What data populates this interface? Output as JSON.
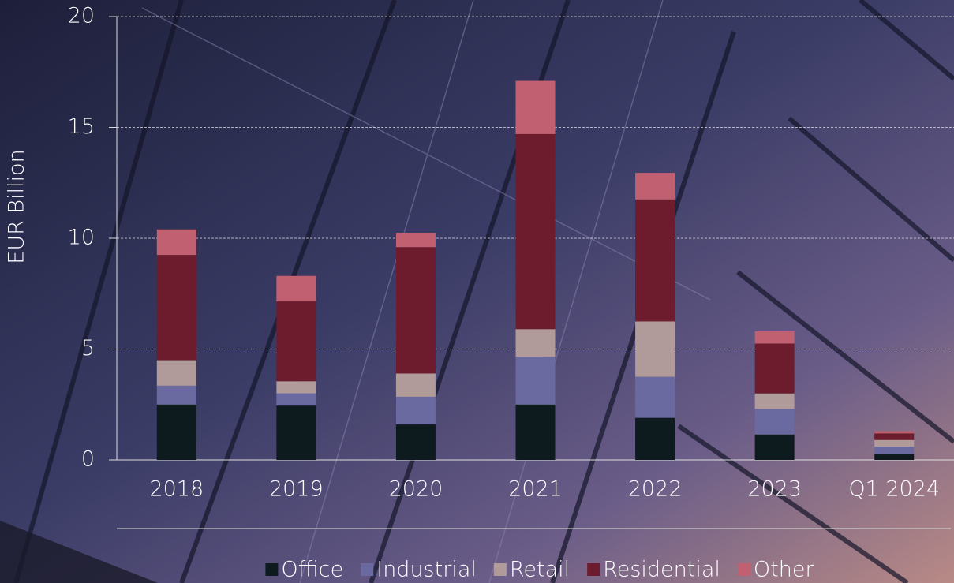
{
  "chart_data": {
    "type": "stacked_bar",
    "y_label": "EUR Billion",
    "categories": [
      "2018",
      "2019",
      "2020",
      "2021",
      "2022",
      "2023",
      "Q1 2024"
    ],
    "series": [
      {
        "name": "Office",
        "color": "#0d1a1e",
        "values": [
          2.5,
          2.45,
          1.6,
          2.5,
          1.9,
          1.15,
          0.25
        ]
      },
      {
        "name": "Industrial",
        "color": "#6a6aa0",
        "values": [
          0.85,
          0.55,
          1.25,
          2.15,
          1.85,
          1.15,
          0.35
        ]
      },
      {
        "name": "Retail",
        "color": "#b09a9a",
        "values": [
          1.15,
          0.55,
          1.05,
          1.25,
          2.5,
          0.7,
          0.3
        ]
      },
      {
        "name": "Residential",
        "color": "#6c1c2c",
        "values": [
          4.75,
          3.6,
          5.7,
          8.8,
          5.5,
          2.25,
          0.3
        ]
      },
      {
        "name": "Other",
        "color": "#c06070",
        "values": [
          1.15,
          1.15,
          0.65,
          2.4,
          1.2,
          0.55,
          0.1
        ]
      }
    ],
    "ylim": [
      0,
      20
    ],
    "yticks": [
      0,
      5,
      10,
      15,
      20
    ],
    "grid": true,
    "legend": "bottom"
  }
}
